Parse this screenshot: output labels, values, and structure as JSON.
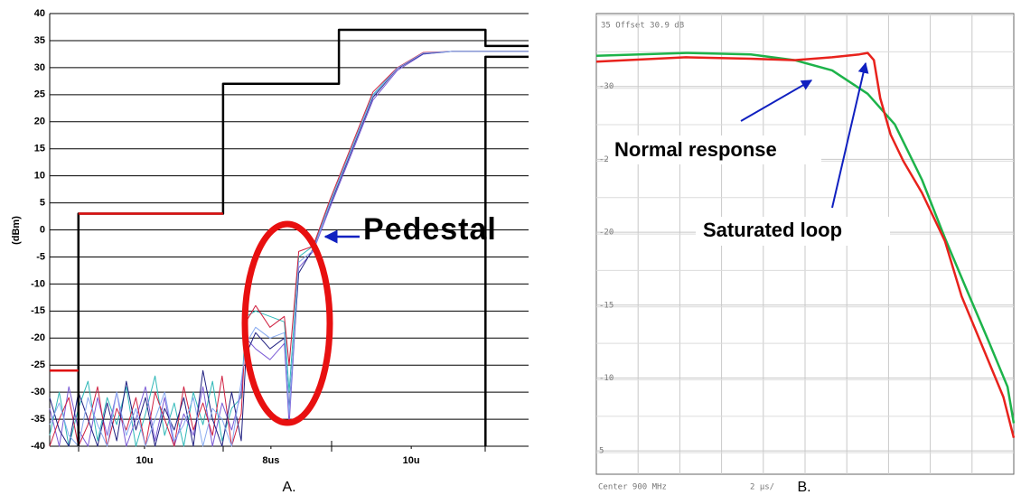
{
  "chart_data": [
    {
      "type": "line",
      "ylabel": "(dBm)",
      "ylim": [
        -40,
        40
      ],
      "yticks": [
        -40,
        -35,
        -30,
        -25,
        -20,
        -15,
        -10,
        -5,
        0,
        5,
        10,
        15,
        20,
        25,
        30,
        35,
        40
      ],
      "xlim": [
        0,
        100
      ],
      "xticks": [
        {
          "value": 19.8,
          "label": "10u"
        },
        {
          "value": 46.2,
          "label": "8us"
        },
        {
          "value": 75.5,
          "label": "10u"
        }
      ],
      "grid": true,
      "x": [
        0,
        2,
        4,
        6,
        8,
        10,
        12,
        14,
        16,
        18,
        20,
        22,
        24,
        26,
        28,
        30,
        32,
        34,
        36,
        38,
        40,
        41,
        43,
        46,
        49,
        50,
        52,
        55,
        58.5,
        63,
        67.5,
        72.6,
        78,
        84,
        100
      ],
      "series": [
        {
          "color": "#2fb8b8",
          "values": [
            -38,
            -30,
            -40,
            -33,
            -28,
            -39,
            -31,
            -36,
            -29,
            -40,
            -34,
            -27,
            -38,
            -32,
            -40,
            -30,
            -36,
            -28,
            -39,
            -33,
            -31,
            -16,
            -15,
            -16,
            -17,
            -30,
            -5,
            -3,
            5,
            15,
            25,
            30,
            32.5,
            33,
            33
          ]
        },
        {
          "color": "#7b5bd6",
          "values": [
            -33,
            -40,
            -29,
            -37,
            -40,
            -31,
            -38,
            -30,
            -40,
            -35,
            -29,
            -39,
            -31,
            -40,
            -34,
            -38,
            -29,
            -40,
            -32,
            -37,
            -30,
            -20,
            -22,
            -24,
            -21,
            -36,
            -7,
            -4,
            4,
            14,
            24,
            29.5,
            32.5,
            33,
            33
          ]
        },
        {
          "color": "#d02040",
          "values": [
            -40,
            -35,
            -31,
            -40,
            -36,
            -29,
            -40,
            -33,
            -37,
            -31,
            -40,
            -30,
            -35,
            -40,
            -29,
            -37,
            -32,
            -38,
            -27,
            -40,
            -34,
            -17,
            -14,
            -18,
            -16,
            -25,
            -4,
            -3,
            5.5,
            15.5,
            25.5,
            30,
            32.8,
            33,
            33
          ]
        },
        {
          "color": "#202080",
          "values": [
            -31,
            -37,
            -40,
            -30,
            -35,
            -40,
            -32,
            -39,
            -28,
            -37,
            -31,
            -40,
            -33,
            -37,
            -31,
            -40,
            -26,
            -35,
            -40,
            -30,
            -39,
            -23,
            -19,
            -22,
            -20,
            -33,
            -8,
            -3.5,
            4.5,
            14.5,
            24.5,
            29.8,
            32.6,
            33,
            33
          ]
        },
        {
          "color": "#88aaf0",
          "values": [
            -36,
            -32,
            -38,
            -40,
            -31,
            -36,
            -40,
            -30,
            -38,
            -33,
            -40,
            -35,
            -30,
            -39,
            -36,
            -31,
            -40,
            -33,
            -35,
            -40,
            -28,
            -21,
            -18,
            -20,
            -19,
            -34,
            -6,
            -3.8,
            4.8,
            14.8,
            24.8,
            29.9,
            32.7,
            33,
            33
          ]
        },
        {
          "color": "#000000",
          "x": [
            6,
            6,
            36.2,
            36.2,
            60.4,
            60.4,
            91,
            91,
            100
          ],
          "values": [
            -40,
            3,
            3,
            27,
            27,
            37,
            37,
            34,
            34
          ]
        },
        {
          "color": "#000000",
          "x": [
            91,
            91,
            100
          ],
          "values": [
            -40,
            32,
            32
          ]
        },
        {
          "color": "#e01010",
          "x": [
            0,
            6,
            6,
            6,
            36.2
          ],
          "values": [
            -26,
            -26,
            null,
            3,
            3
          ]
        }
      ],
      "annotations": [
        "Pedestal"
      ],
      "caption": "A."
    },
    {
      "type": "line",
      "title": "35 Offset 30.9 dB",
      "ylim": [
        3.4,
        35
      ],
      "yticks": [
        {
          "value": 30,
          "label": "-30"
        },
        {
          "value": 25,
          "label": "-2"
        },
        {
          "value": 20,
          "label": "-20"
        },
        {
          "value": 15,
          "label": "-15"
        },
        {
          "value": 10,
          "label": "-10"
        },
        5
      ],
      "xlim": [
        0,
        20
      ],
      "grid": true,
      "x_labels": [
        "Center 900 MHz",
        "2 µs/"
      ],
      "series": [
        {
          "color": "#1db34a",
          "x": [
            0,
            4.3,
            7.4,
            9.5,
            11.3,
            13.0,
            14.3,
            15.6,
            16.7,
            17.7,
            18.8,
            19.7,
            20
          ],
          "values": [
            32.1,
            32.3,
            32.2,
            31.8,
            31.1,
            29.5,
            27.4,
            23.6,
            19.6,
            16.2,
            12.5,
            9.4,
            6.9
          ]
        },
        {
          "color": "#e8221c",
          "x": [
            0,
            4.3,
            7.4,
            9.5,
            11.3,
            12.6,
            13.0,
            13.3,
            13.6,
            14.1,
            14.7,
            15.6,
            16.7,
            17.5,
            18.6,
            19.5,
            20
          ],
          "values": [
            31.7,
            32.0,
            31.9,
            31.8,
            32.0,
            32.2,
            32.3,
            31.8,
            29.2,
            26.7,
            24.9,
            22.7,
            19.4,
            15.6,
            11.8,
            8.7,
            5.9
          ]
        }
      ],
      "annotations": [
        "Normal response",
        "Saturated loop"
      ],
      "caption": "B."
    }
  ]
}
